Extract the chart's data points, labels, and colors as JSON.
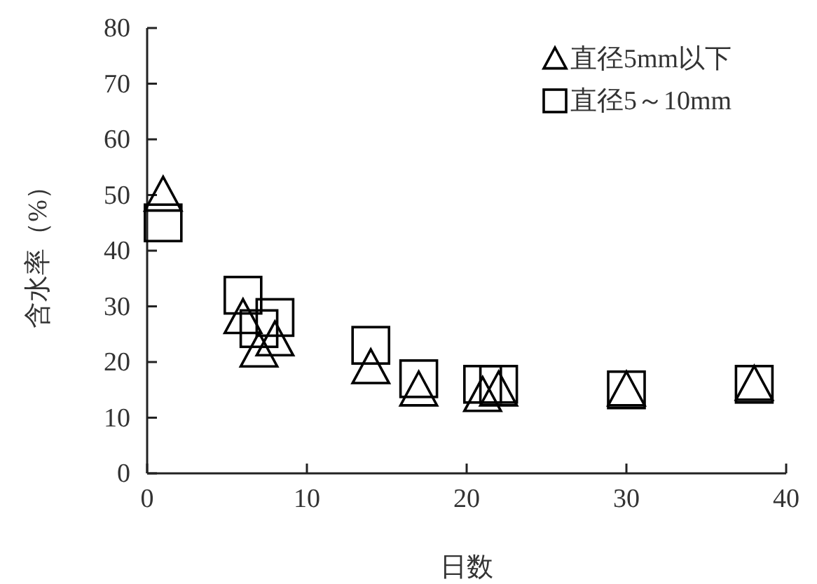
{
  "chart_data": {
    "type": "scatter",
    "xlabel": "日数",
    "ylabel": "含水率（%）",
    "xlim": [
      0,
      40
    ],
    "xticks": [
      0,
      10,
      20,
      30,
      40
    ],
    "ylim": [
      0,
      80
    ],
    "yticks": [
      0,
      10,
      20,
      30,
      40,
      50,
      60,
      70,
      80
    ],
    "grid": false,
    "legend": "top right",
    "series": [
      {
        "name": "直径5mm以下",
        "color": "#000000",
        "marker": "triangle",
        "x": [
          1,
          6,
          7,
          8,
          14,
          17,
          21,
          22,
          30,
          38
        ],
        "values": [
          50,
          28,
          22,
          24,
          19,
          15,
          14,
          15,
          15,
          16
        ]
      },
      {
        "name": "直径5～10mm",
        "color": "#000000",
        "marker": "square",
        "x": [
          1,
          6,
          7,
          8,
          14,
          17,
          21,
          22,
          30,
          38
        ],
        "values": [
          45,
          32,
          26,
          28,
          23,
          17,
          16,
          16,
          15,
          16
        ]
      }
    ]
  }
}
